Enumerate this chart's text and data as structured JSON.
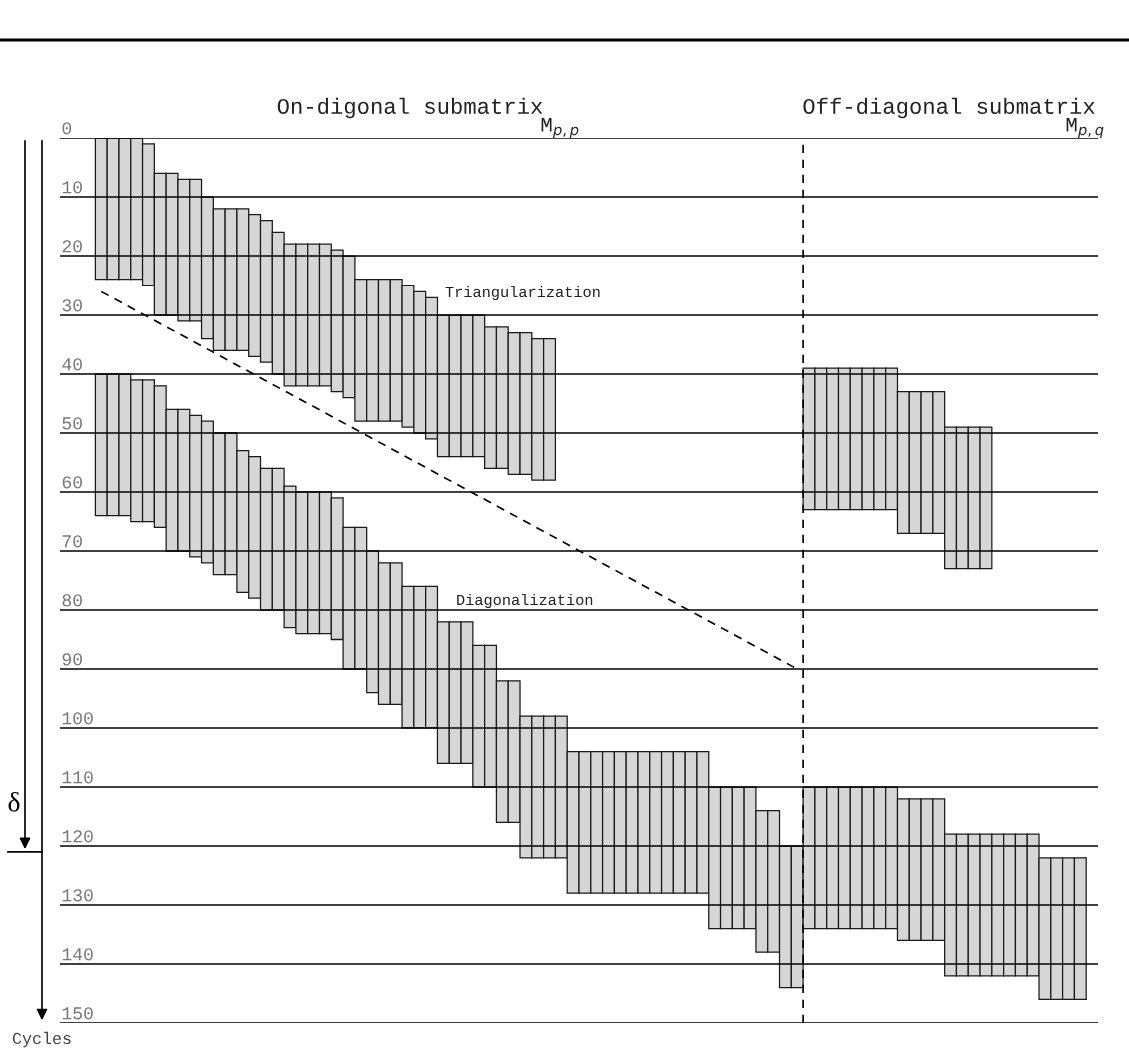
{
  "chart_data": {
    "type": "bar",
    "categories": [
      null,
      null,
      null,
      null,
      null,
      null,
      null,
      null,
      null,
      null,
      null,
      null,
      null,
      null,
      null,
      null,
      null,
      null,
      null,
      null,
      null,
      null,
      null,
      null,
      null,
      null,
      null,
      null,
      null,
      null,
      null,
      null,
      null,
      null,
      null,
      null,
      null,
      null,
      null,
      null,
      null,
      null,
      null,
      null,
      null,
      null,
      null,
      null,
      null,
      null,
      null,
      null,
      null,
      null,
      null,
      null,
      null,
      null,
      null,
      null,
      null,
      null,
      null,
      null,
      null,
      null,
      null,
      null,
      null,
      null,
      null,
      null,
      null,
      null,
      null,
      null,
      null,
      null,
      null,
      null,
      null,
      null,
      null,
      null,
      null,
      null,
      null,
      null
    ],
    "series": [
      {
        "color": "#d6d6d6",
        "values": [
          null,
          null,
          null,
          24,
          24,
          24,
          24,
          24,
          24,
          24,
          24,
          24,
          24,
          24,
          24,
          24,
          24,
          24,
          24,
          24,
          24,
          24,
          24,
          24,
          24,
          24,
          24,
          24,
          24,
          24,
          24,
          24,
          24,
          24,
          24,
          24,
          24,
          24,
          24,
          24,
          24,
          24,
          null,
          null,
          null,
          null,
          null,
          null,
          null,
          null,
          null,
          null,
          null,
          null,
          null,
          null,
          null,
          null,
          null,
          null,
          null,
          null,
          null,
          24,
          24,
          24,
          24,
          24,
          24,
          24,
          24,
          24,
          24,
          24,
          24,
          24,
          24,
          24,
          24,
          null,
          null,
          null,
          null,
          null,
          null,
          null,
          null,
          null
        ],
        "base": [
          null,
          null,
          null,
          0,
          0,
          0,
          0,
          1,
          6,
          6,
          7,
          7,
          10,
          12,
          12,
          12,
          13,
          14,
          16,
          18,
          18,
          18,
          18,
          19,
          20,
          24,
          24,
          24,
          24,
          25,
          26,
          27,
          30,
          30,
          30,
          30,
          32,
          32,
          33,
          33,
          34,
          34,
          null,
          null,
          null,
          null,
          null,
          null,
          null,
          null,
          null,
          null,
          null,
          null,
          null,
          null,
          null,
          null,
          null,
          null,
          null,
          null,
          null,
          39,
          39,
          39,
          39,
          39,
          39,
          39,
          39,
          43,
          43,
          43,
          43,
          49,
          49,
          49,
          49,
          null,
          null,
          null,
          null,
          null,
          null,
          null,
          null,
          null
        ]
      },
      {
        "color": "#d6d6d6",
        "values": [
          null,
          null,
          null,
          24,
          24,
          24,
          24,
          24,
          24,
          24,
          24,
          24,
          24,
          24,
          24,
          24,
          24,
          24,
          24,
          24,
          24,
          24,
          24,
          24,
          24,
          24,
          24,
          24,
          24,
          24,
          24,
          24,
          24,
          24,
          24,
          24,
          24,
          24,
          24,
          24,
          24,
          24,
          24,
          24,
          24,
          24,
          24,
          24,
          24,
          24,
          24,
          24,
          24,
          24,
          24,
          24,
          24,
          24,
          24,
          24,
          24,
          24,
          24,
          24,
          24,
          24,
          24,
          24,
          24,
          24,
          24,
          24,
          24,
          24,
          24,
          24,
          24,
          24,
          24,
          24,
          24,
          24,
          24,
          24,
          24,
          24,
          24,
          null
        ],
        "base": [
          null,
          null,
          null,
          40,
          40,
          40,
          41,
          41,
          42,
          46,
          46,
          47,
          48,
          50,
          50,
          53,
          54,
          56,
          56,
          59,
          60,
          60,
          60,
          61,
          66,
          66,
          70,
          72,
          72,
          76,
          76,
          76,
          82,
          82,
          82,
          86,
          86,
          92,
          92,
          98,
          98,
          98,
          98,
          104,
          104,
          104,
          104,
          104,
          104,
          104,
          104,
          104,
          104,
          104,
          104,
          110,
          110,
          110,
          110,
          114,
          114,
          120,
          120,
          110,
          110,
          110,
          110,
          110,
          110,
          110,
          110,
          112,
          112,
          112,
          112,
          118,
          118,
          118,
          118,
          118,
          118,
          118,
          118,
          122,
          122,
          122,
          122,
          null
        ]
      },
      {
        "type": "line",
        "color": "#000000",
        "line_style": "dashed",
        "values": [
          null,
          null,
          null,
          26,
          null,
          null,
          null,
          null,
          null,
          null,
          null,
          null,
          null,
          null,
          null,
          null,
          null,
          null,
          null,
          null,
          null,
          null,
          null,
          null,
          null,
          null,
          null,
          null,
          null,
          null,
          null,
          null,
          null,
          null,
          null,
          null,
          null,
          null,
          null,
          null,
          null,
          null,
          null,
          null,
          null,
          null,
          null,
          null,
          null,
          null,
          null,
          null,
          null,
          null,
          null,
          null,
          null,
          null,
          null,
          null,
          null,
          null,
          90,
          null,
          null,
          null,
          null,
          null,
          null,
          null,
          null,
          null,
          null,
          null,
          null,
          null,
          null,
          null,
          null,
          null,
          null,
          null,
          null,
          null,
          null,
          null,
          null,
          null
        ]
      }
    ],
    "ylabel": "Cycles",
    "ylim": [
      150,
      0
    ],
    "yticks": [
      0,
      10,
      20,
      30,
      40,
      50,
      60,
      70,
      80,
      90,
      100,
      110,
      120,
      130,
      140,
      150
    ],
    "grid": "y",
    "tick_labels": "y",
    "ref_lines": [
      {
        "axis": "y",
        "value": 121,
        "label": "δ",
        "color": "#000000"
      }
    ],
    "annotations": [
      "On-digonal submatrix",
      "M$_{p,p}$",
      "Off-diagonal submatrix",
      "M$_{p,q}$",
      "Triangularization",
      "Diagonalization"
    ]
  }
}
